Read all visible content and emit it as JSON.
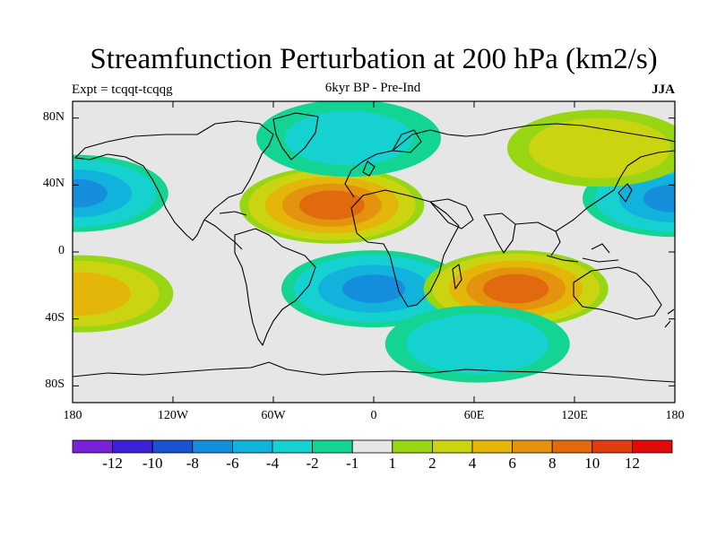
{
  "chart_data": {
    "type": "heatmap",
    "title": "Streamfunction Perturbation at 200 hPa (km2/s)",
    "left_string": "Expt = tcqqt-tcqqg",
    "center_string": "6kyr BP - Pre-Ind",
    "right_string": "JJA",
    "xlim": [
      -180,
      180
    ],
    "ylim": [
      -90,
      90
    ],
    "x_ticks": [
      {
        "value": -180,
        "label": "180"
      },
      {
        "value": -120,
        "label": "120W"
      },
      {
        "value": -60,
        "label": "60W"
      },
      {
        "value": 0,
        "label": "0"
      },
      {
        "value": 60,
        "label": "60E"
      },
      {
        "value": 120,
        "label": "120E"
      },
      {
        "value": 180,
        "label": "180"
      }
    ],
    "y_ticks": [
      {
        "value": 80,
        "label": "80N"
      },
      {
        "value": 40,
        "label": "40N"
      },
      {
        "value": 0,
        "label": "0"
      },
      {
        "value": -40,
        "label": "40S"
      },
      {
        "value": -80,
        "label": "80S"
      }
    ],
    "colorbar": {
      "colors": [
        "#7a22d6",
        "#3c22d6",
        "#1b52d0",
        "#158fdc",
        "#11b3dc",
        "#15d2d0",
        "#14d494",
        "#e6e6e6",
        "#98d614",
        "#cbd411",
        "#e3b609",
        "#e3930e",
        "#e06a0d",
        "#e03e0f",
        "#e00a0a"
      ],
      "tick_labels": [
        "-12",
        "-10",
        "-8",
        "-6",
        "-4",
        "-2",
        "-1",
        "1",
        "2",
        "4",
        "6",
        "8",
        "10",
        "12"
      ]
    },
    "features": [
      {
        "name": "north-pacific-low-west",
        "lon": -178,
        "lat": 35,
        "level": -6
      },
      {
        "name": "north-pacific-low-east",
        "lon": 180,
        "lat": 32,
        "level": -6
      },
      {
        "name": "north-atlantic-africa-high",
        "lon": -25,
        "lat": 28,
        "level": 9
      },
      {
        "name": "south-atlantic-low",
        "lon": 0,
        "lat": -22,
        "level": -6
      },
      {
        "name": "indian-ocean-high",
        "lon": 85,
        "lat": -22,
        "level": 9
      },
      {
        "name": "south-pacific-high",
        "lon": -175,
        "lat": -25,
        "level": 5
      },
      {
        "name": "southern-ocean-low",
        "lon": 62,
        "lat": -55,
        "level": -3
      },
      {
        "name": "arctic-atlantic-low",
        "lon": -15,
        "lat": 68,
        "level": -2
      },
      {
        "name": "siberian-high",
        "lon": 135,
        "lat": 62,
        "level": 3
      }
    ]
  }
}
